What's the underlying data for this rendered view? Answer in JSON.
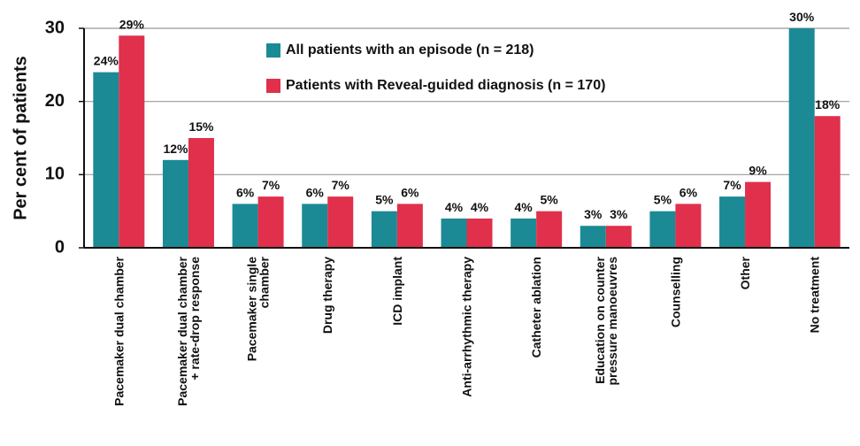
{
  "chart_data": {
    "type": "bar",
    "y_label": "Per cent of patients",
    "categories": [
      "Pacemaker dual chamber",
      "Pacemaker dual chamber\n+ rate-drop response",
      "Pacemaker single\nchamber",
      "Drug therapy",
      "ICD implant",
      "Anti-arrhythmic therapy",
      "Catheter ablation",
      "Education on counter\npressure manoeuvres",
      "Counselling",
      "Other",
      "No treatment"
    ],
    "series": [
      {
        "name": "All patients with an episode (n = 218)",
        "color": "#1b8a95",
        "values": [
          24,
          12,
          6,
          6,
          5,
          4,
          4,
          3,
          5,
          7,
          30
        ],
        "value_labels": [
          "24%",
          "12%",
          "6%",
          "6%",
          "5%",
          "4%",
          "4%",
          "3%",
          "5%",
          "7%",
          "30%"
        ]
      },
      {
        "name": "Patients with Reveal-guided diagnosis (n = 170)",
        "color": "#e0304b",
        "values": [
          29,
          15,
          7,
          7,
          6,
          4,
          5,
          3,
          6,
          9,
          18
        ],
        "value_labels": [
          "29%",
          "15%",
          "7%",
          "7%",
          "6%",
          "4%",
          "5%",
          "3%",
          "6%",
          "9%",
          "18%"
        ]
      }
    ],
    "ylim": [
      0,
      30
    ],
    "yticks": [
      0,
      10,
      20,
      30
    ],
    "grid": true
  }
}
